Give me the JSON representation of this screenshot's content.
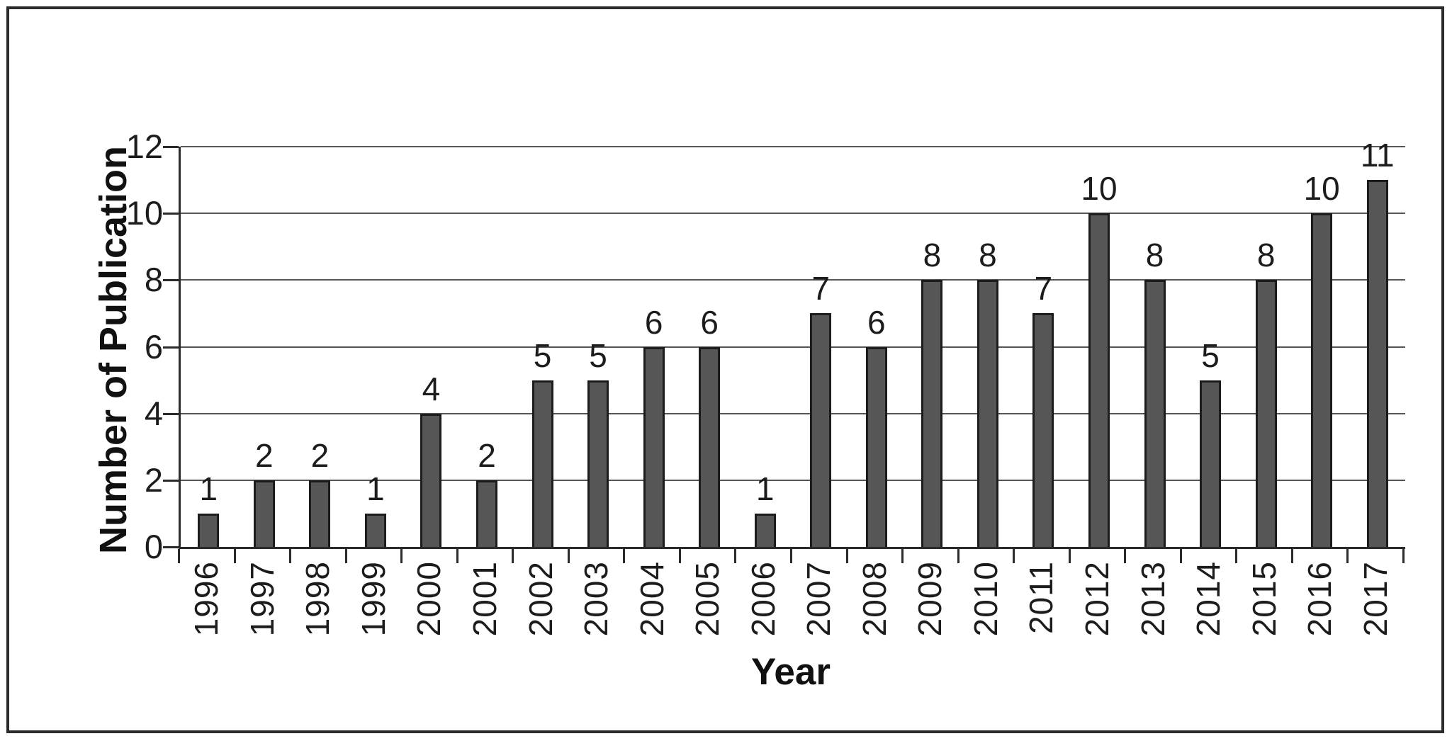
{
  "chart_data": {
    "type": "bar",
    "title": "",
    "xlabel": "Year",
    "ylabel": "Number of Publication",
    "categories": [
      "1996",
      "1997",
      "1998",
      "1999",
      "2000",
      "2001",
      "2002",
      "2003",
      "2004",
      "2005",
      "2006",
      "2007",
      "2008",
      "2009",
      "2010",
      "2011",
      "2012",
      "2013",
      "2014",
      "2015",
      "2016",
      "2017"
    ],
    "values": [
      1,
      2,
      2,
      1,
      4,
      2,
      5,
      5,
      6,
      6,
      1,
      7,
      6,
      8,
      8,
      7,
      10,
      8,
      5,
      8,
      10,
      11
    ],
    "yticks": [
      0,
      2,
      4,
      6,
      8,
      10,
      12
    ],
    "ylim": [
      0,
      12
    ],
    "grid": true,
    "legend_position": "none",
    "data_labels": true,
    "bar_color": "#565656",
    "bar_border_color": "#1c1c1c",
    "gridline_color": "#555555",
    "axis_color": "#2b2b2b",
    "text_color": "#1c1c1c"
  }
}
